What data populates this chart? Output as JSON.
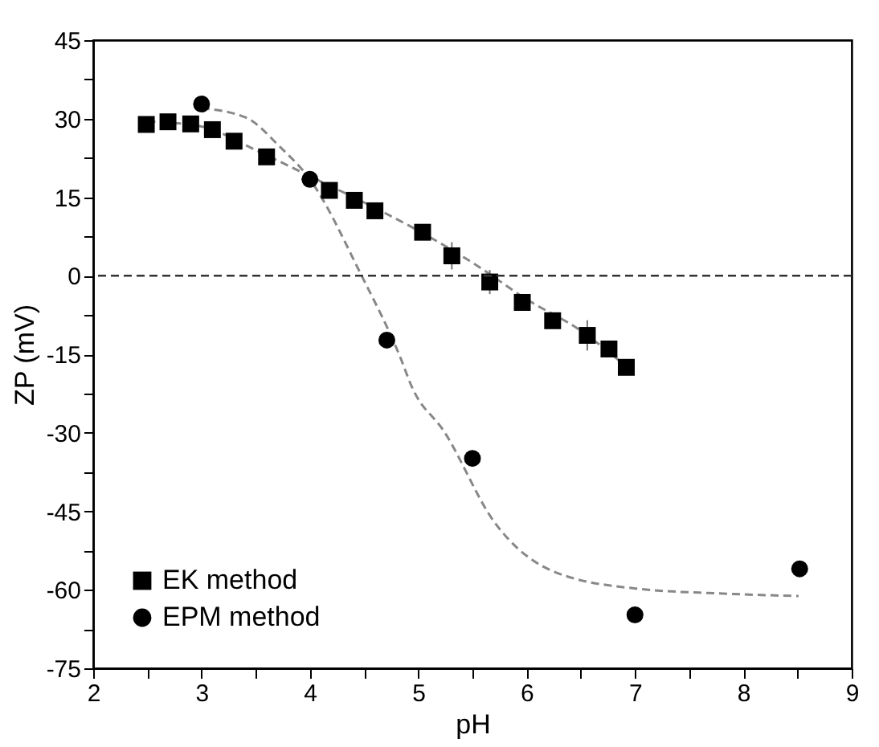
{
  "chart_data": {
    "type": "scatter",
    "xlabel": "pH",
    "ylabel": "ZP (mV)",
    "xlim": [
      2,
      9
    ],
    "ylim": [
      -75,
      45
    ],
    "xticks": [
      2,
      {
        "value": 2.5,
        "label": null
      },
      3,
      {
        "value": 3.5,
        "label": null
      },
      4,
      {
        "value": 4.5,
        "label": null
      },
      5,
      {
        "value": 5.5,
        "label": null
      },
      6,
      {
        "value": 6.5,
        "label": null
      },
      7,
      {
        "value": 7.5,
        "label": null
      },
      8,
      {
        "value": 8.5,
        "label": null
      },
      9
    ],
    "yticks": [
      -75,
      {
        "value": -67.5,
        "label": null
      },
      -60,
      {
        "value": -52.5,
        "label": null
      },
      -45,
      {
        "value": -37.5,
        "label": null
      },
      -30,
      {
        "value": -22.5,
        "label": null
      },
      -15,
      {
        "value": -7.5,
        "label": null
      },
      0,
      {
        "value": 7.5,
        "label": null
      },
      15,
      {
        "value": 22.5,
        "label": null
      },
      30,
      {
        "value": 37.5,
        "label": null
      },
      45
    ],
    "legend": "bottom left",
    "grid": false,
    "ref_lines": [
      {
        "axis": "y",
        "value": 0,
        "color": "#333333",
        "line_style": "dashed"
      }
    ],
    "series": [
      {
        "type": "line",
        "color": "#888888",
        "line_style": "dashed",
        "marker": "none",
        "x": [
          2.5,
          3.0,
          3.5,
          4.0,
          4.5,
          5.0,
          5.5,
          6.0,
          6.5,
          6.9
        ],
        "values": [
          29.5,
          28.5,
          24,
          19,
          14,
          8.6,
          2.5,
          -4.5,
          -10.5,
          -17
        ]
      },
      {
        "type": "line",
        "color": "#888888",
        "line_style": "dashed",
        "marker": "none",
        "x": [
          3.0,
          3.41,
          3.72,
          4.0,
          4.47,
          4.84,
          4.94,
          5.24,
          5.7,
          6.26,
          7.02,
          7.78,
          8.51
        ],
        "values": [
          32,
          30.2,
          24.7,
          18.4,
          0.3,
          -15.9,
          -21.2,
          -29.8,
          -47,
          -56.6,
          -59.8,
          -60.7,
          -61.2
        ]
      },
      {
        "name": "EK method",
        "type": "scatter",
        "marker": "square",
        "color": "#000000",
        "x": [
          2.49,
          2.69,
          2.9,
          3.1,
          3.3,
          3.6,
          4.18,
          4.41,
          4.6,
          5.04,
          5.31,
          5.66,
          5.96,
          6.24,
          6.56,
          6.76,
          6.92
        ],
        "values": [
          28.9,
          29.4,
          29.0,
          27.9,
          25.7,
          22.7,
          16.3,
          14.4,
          12.4,
          8.3,
          3.8,
          -1.2,
          -5.1,
          -8.6,
          -11.4,
          -14.0,
          -17.5
        ],
        "errors": [
          null,
          null,
          null,
          null,
          null,
          null,
          null,
          null,
          null,
          1.5,
          2.6,
          2.3,
          null,
          null,
          2.9,
          null,
          null
        ]
      },
      {
        "name": "EPM method",
        "type": "scatter",
        "marker": "circle",
        "color": "#000000",
        "x": [
          3.0,
          4.0,
          4.71,
          5.5,
          7.0,
          8.52
        ],
        "values": [
          32.8,
          18.4,
          -12.3,
          -34.9,
          -64.8,
          -56.0
        ]
      }
    ]
  }
}
